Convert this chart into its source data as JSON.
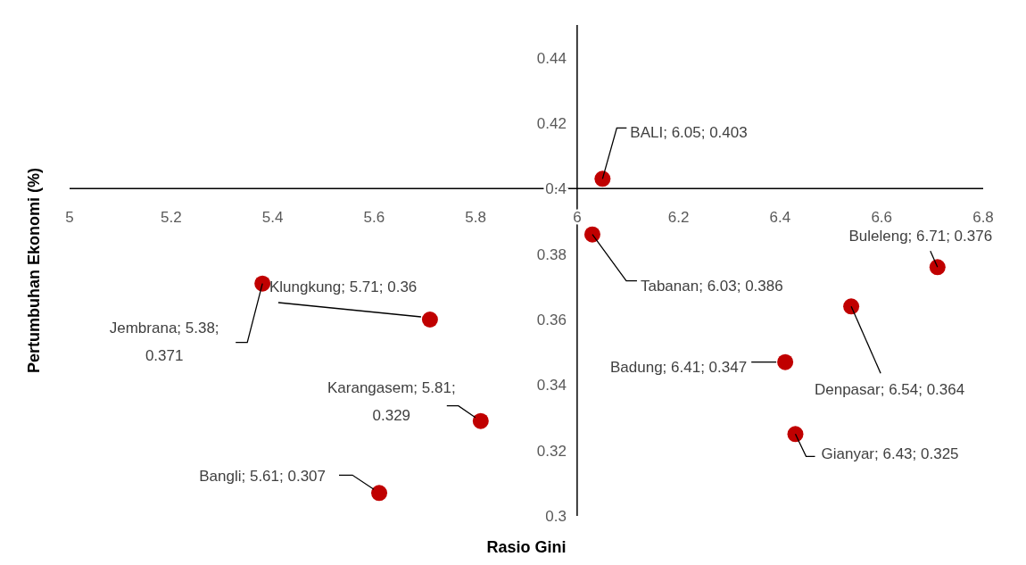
{
  "chart_data": {
    "type": "scatter",
    "xlabel": "Rasio Gini",
    "ylabel": "Pertumbuhan Ekonomi (%)",
    "xlim": [
      5,
      6.8
    ],
    "xticks": [
      5,
      5.2,
      5.4,
      5.6,
      5.8,
      6,
      6.2,
      6.4,
      6.6,
      6.8
    ],
    "ylim": [
      0.3,
      0.45
    ],
    "yticks": [
      0.3,
      0.32,
      0.34,
      0.36,
      0.38,
      0.4,
      0.42,
      0.44
    ],
    "grid": false,
    "legend": false,
    "marker": "circle",
    "series": [
      {
        "color": "#c00000",
        "x": [
          6.05,
          6.03,
          6.71,
          5.71,
          5.38,
          6.54,
          6.41,
          5.81,
          6.43,
          5.61
        ],
        "values": [
          0.403,
          0.386,
          0.376,
          0.36,
          0.371,
          0.364,
          0.347,
          0.329,
          0.325,
          0.307
        ],
        "value_labels": [
          "BALI; 6.05; 0.403",
          "Tabanan; 6.03; 0.386",
          "Buleleng; 6.71; 0.376",
          "Klungkung; 5.71; 0.36",
          "Jembrana; 5.38; 0.371",
          "Denpasar; 6.54; 0.364",
          "Badung; 6.41; 0.347",
          "Karangasem; 5.81; 0.329",
          "Gianyar; 6.43; 0.325",
          "Bangli; 5.61; 0.307"
        ]
      }
    ]
  }
}
